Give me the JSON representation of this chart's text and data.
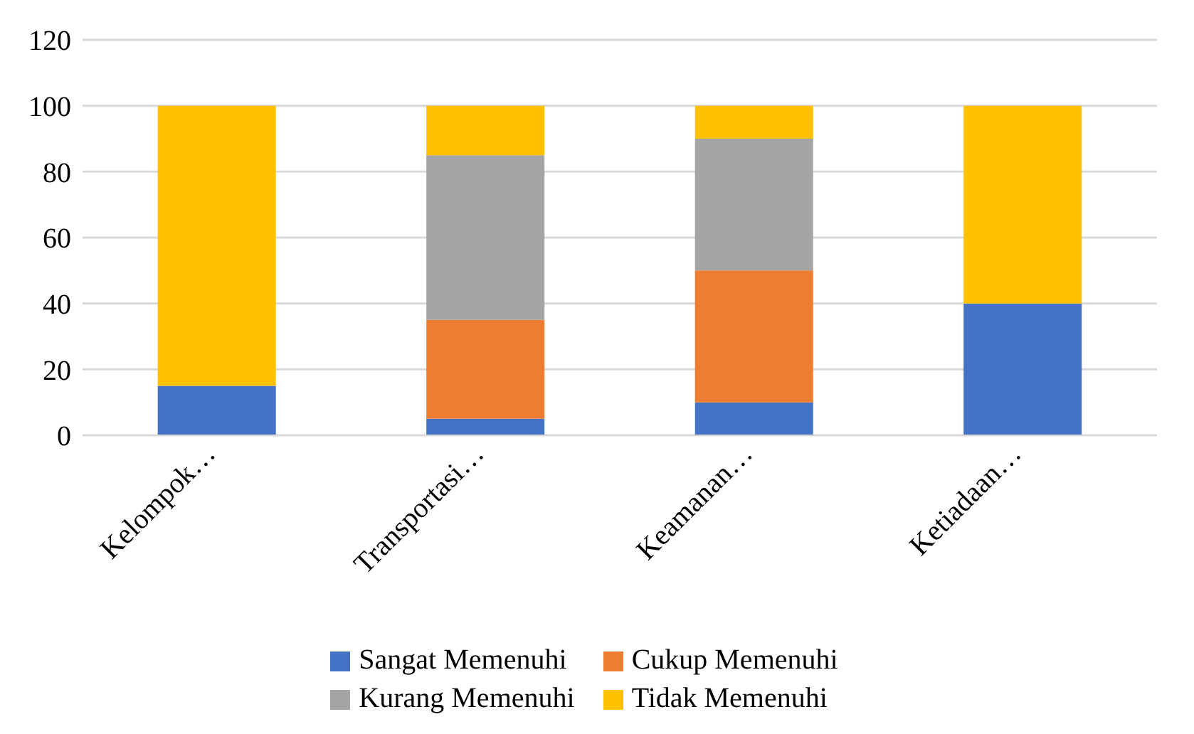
{
  "chart_data": {
    "type": "bar",
    "stacked": true,
    "categories": [
      "Kelompok…",
      "Transportasi…",
      "Keamanan…",
      "Ketiadaan…"
    ],
    "series": [
      {
        "name": "Sangat Memenuhi",
        "color": "#4472c4",
        "values": [
          15,
          5,
          10,
          40
        ]
      },
      {
        "name": "Cukup Memenuhi",
        "color": "#ed7d31",
        "values": [
          0,
          30,
          40,
          0
        ]
      },
      {
        "name": "Kurang Memenuhi",
        "color": "#a5a5a5",
        "values": [
          0,
          50,
          40,
          0
        ]
      },
      {
        "name": "Tidak Memenuhi",
        "color": "#ffc000",
        "values": [
          85,
          15,
          10,
          60
        ]
      }
    ],
    "ylim": [
      0,
      120
    ],
    "yticks": [
      0,
      20,
      40,
      60,
      80,
      100,
      120
    ],
    "grid": "y",
    "legend": "bottom"
  }
}
